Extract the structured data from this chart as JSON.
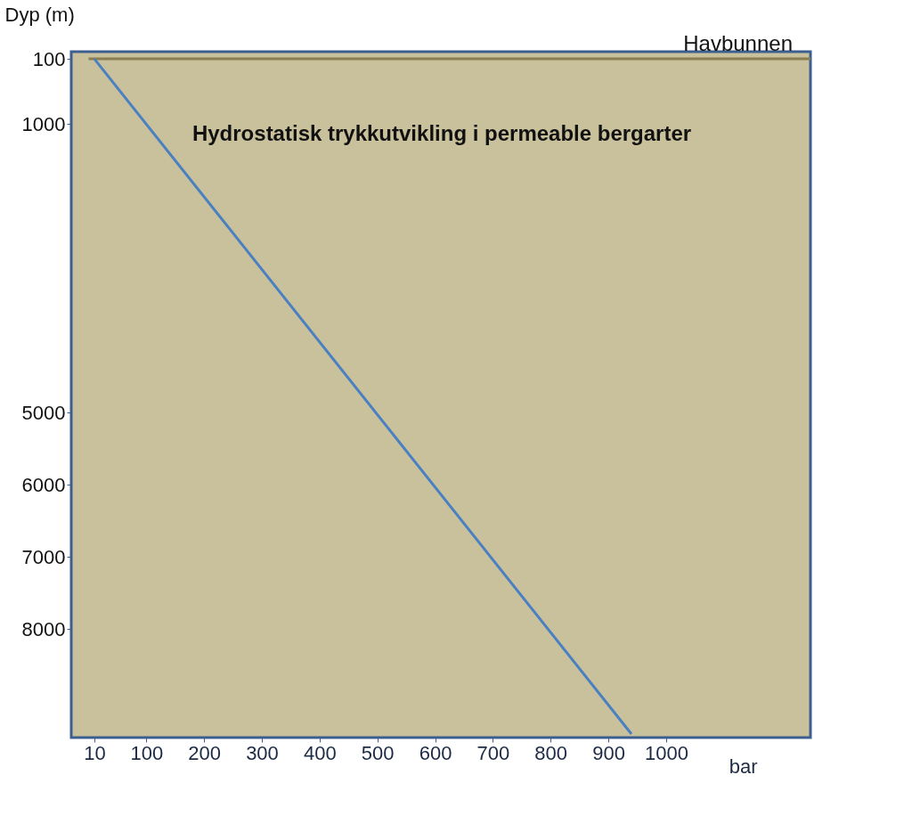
{
  "chart_data": {
    "type": "line",
    "xlabel": "bar",
    "ylabel": "Dyp (m)",
    "series": [
      {
        "name": "Havbunnen",
        "color": "#8b7d52",
        "x": [
          0,
          1250
        ],
        "values": [
          100,
          100
        ]
      },
      {
        "name": "Hydrostatisk trykkutvikling i permeable bergarter",
        "color": "#4a7fc1",
        "x": [
          10,
          940
        ],
        "values": [
          100,
          9450
        ]
      }
    ],
    "xlim": [
      -30,
      1250
    ],
    "xticks": [
      10,
      100,
      200,
      300,
      400,
      500,
      600,
      700,
      800,
      900,
      1000
    ],
    "ylim": [
      9500,
      0
    ],
    "yticks": [
      100,
      1000,
      5000,
      6000,
      7000,
      8000
    ],
    "grid": false,
    "marker": "none",
    "line_style": "solid"
  }
}
